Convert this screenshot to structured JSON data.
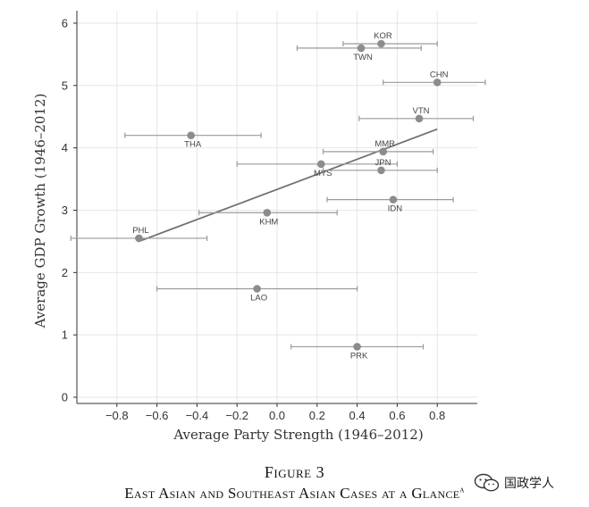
{
  "chart_data": {
    "type": "scatter",
    "xlabel": "Average Party Strength (1946–2012)",
    "ylabel": "Average GDP Growth (1946–2012)",
    "xlim": [
      -1.0,
      1.0
    ],
    "ylim": [
      -0.1,
      6.2
    ],
    "xticks": [
      -0.8,
      -0.6,
      -0.4,
      -0.2,
      0.0,
      0.2,
      0.4,
      0.6,
      0.8
    ],
    "xtick_labels": [
      "−0.8",
      "−0.6",
      "−0.4",
      "−0.2",
      "0.0",
      "0.2",
      "0.4",
      "0.6",
      "0.8"
    ],
    "yticks": [
      0,
      1,
      2,
      3,
      4,
      5,
      6
    ],
    "ytick_labels": [
      "0",
      "1",
      "2",
      "3",
      "4",
      "5",
      "6"
    ],
    "grid": true,
    "points": [
      {
        "label": "KOR",
        "x": 0.52,
        "y": 5.67,
        "xerr_low": 0.33,
        "xerr_high": 0.8,
        "label_pos": "above"
      },
      {
        "label": "TWN",
        "x": 0.42,
        "y": 5.6,
        "xerr_low": 0.1,
        "xerr_high": 0.72,
        "label_pos": "below"
      },
      {
        "label": "CHN",
        "x": 0.8,
        "y": 5.05,
        "xerr_low": 0.53,
        "xerr_high": 1.04,
        "label_pos": "above"
      },
      {
        "label": "VTN",
        "x": 0.71,
        "y": 4.47,
        "xerr_low": 0.41,
        "xerr_high": 0.98,
        "label_pos": "above"
      },
      {
        "label": "THA",
        "x": -0.43,
        "y": 4.2,
        "xerr_low": -0.76,
        "xerr_high": -0.08,
        "label_pos": "below"
      },
      {
        "label": "MMR",
        "x": 0.53,
        "y": 3.94,
        "xerr_low": 0.23,
        "xerr_high": 0.78,
        "label_pos": "above"
      },
      {
        "label": "MYS",
        "x": 0.22,
        "y": 3.74,
        "xerr_low": -0.2,
        "xerr_high": 0.6,
        "label_pos": "below"
      },
      {
        "label": "JPN",
        "x": 0.52,
        "y": 3.64,
        "xerr_low": 0.23,
        "xerr_high": 0.8,
        "label_pos": "above"
      },
      {
        "label": "IDN",
        "x": 0.58,
        "y": 3.17,
        "xerr_low": 0.25,
        "xerr_high": 0.88,
        "label_pos": "below"
      },
      {
        "label": "KHM",
        "x": -0.05,
        "y": 2.96,
        "xerr_low": -0.39,
        "xerr_high": 0.3,
        "label_pos": "below"
      },
      {
        "label": "PHL",
        "x": -0.69,
        "y": 2.55,
        "xerr_low": -1.03,
        "xerr_high": -0.35,
        "label_pos": "above"
      },
      {
        "label": "LAO",
        "x": -0.1,
        "y": 1.74,
        "xerr_low": -0.6,
        "xerr_high": 0.4,
        "label_pos": "below"
      },
      {
        "label": "PRK",
        "x": 0.4,
        "y": 0.81,
        "xerr_low": 0.07,
        "xerr_high": 0.73,
        "label_pos": "below"
      }
    ],
    "fit_line": {
      "x": [
        -0.69,
        0.8
      ],
      "y": [
        2.5,
        4.3
      ]
    },
    "colors": {
      "point": "#8c8c8c",
      "errorbar": "#9a9a9a",
      "fit": "#707070",
      "grid": "#e6e6e6",
      "axis": "#333333"
    }
  },
  "caption": {
    "figure_number": "Figure 3",
    "title": "East Asian and Southeast Asian Cases at a Glance",
    "title_marker": "a"
  },
  "watermark": {
    "text": "国政学人",
    "icon": "wechat-icon"
  }
}
